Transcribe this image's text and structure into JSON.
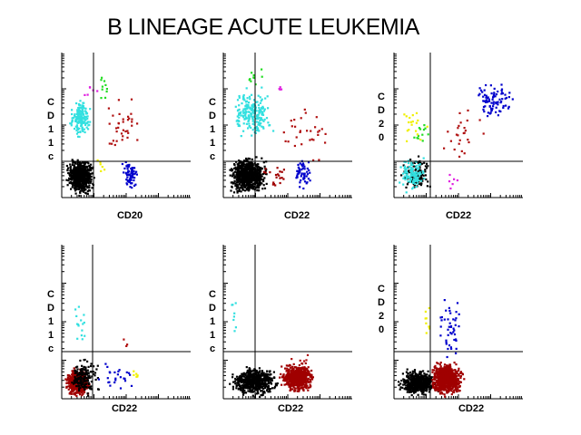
{
  "title": "B LINEAGE ACUTE LEUKEMIA",
  "colors": {
    "black": "#000000",
    "cyan": "#33e0e0",
    "blue": "#0000cc",
    "red": "#b01010",
    "darkred": "#a00000",
    "green": "#22dd22",
    "yellow": "#f0f000",
    "magenta": "#e020e0"
  },
  "chart_data": [
    {
      "type": "scatter",
      "panel": "top-left",
      "xlabel": "CD20",
      "ylabel": "CD11c",
      "populations": [
        {
          "color": "black",
          "x": [
            0,
            0.25
          ],
          "y": [
            0,
            0.28
          ],
          "count": 650
        },
        {
          "color": "cyan",
          "x": [
            0.03,
            0.22
          ],
          "y": [
            0.4,
            0.72
          ],
          "count": 160
        },
        {
          "color": "blue",
          "x": [
            0.45,
            0.6
          ],
          "y": [
            0.02,
            0.28
          ],
          "count": 70
        },
        {
          "color": "red",
          "x": [
            0.3,
            0.65
          ],
          "y": [
            0.25,
            0.75
          ],
          "count": 35
        },
        {
          "color": "green",
          "x": [
            0.25,
            0.4
          ],
          "y": [
            0.65,
            0.92
          ],
          "count": 10
        },
        {
          "color": "magenta",
          "x": [
            0.12,
            0.3
          ],
          "y": [
            0.65,
            0.9
          ],
          "count": 6
        },
        {
          "color": "yellow",
          "x": [
            0.22,
            0.35
          ],
          "y": [
            0.12,
            0.3
          ],
          "count": 6
        }
      ]
    },
    {
      "type": "scatter",
      "panel": "top-middle",
      "xlabel": "CD22",
      "ylabel": "CD11c",
      "populations": [
        {
          "color": "black",
          "x": [
            0,
            0.35
          ],
          "y": [
            0,
            0.3
          ],
          "count": 750
        },
        {
          "color": "cyan",
          "x": [
            0.02,
            0.4
          ],
          "y": [
            0.38,
            0.8
          ],
          "count": 200
        },
        {
          "color": "blue",
          "x": [
            0.52,
            0.7
          ],
          "y": [
            0.02,
            0.32
          ],
          "count": 55
        },
        {
          "color": "red",
          "x": [
            0.35,
            0.9
          ],
          "y": [
            0.2,
            0.72
          ],
          "count": 30
        },
        {
          "color": "darkred",
          "x": [
            0.25,
            0.55
          ],
          "y": [
            0.02,
            0.3
          ],
          "count": 20
        },
        {
          "color": "green",
          "x": [
            0.1,
            0.35
          ],
          "y": [
            0.7,
            0.95
          ],
          "count": 10
        },
        {
          "color": "magenta",
          "x": [
            0.35,
            0.5
          ],
          "y": [
            0.7,
            0.85
          ],
          "count": 4
        }
      ]
    },
    {
      "type": "scatter",
      "panel": "top-right",
      "xlabel": "CD22",
      "ylabel": "CD20",
      "populations": [
        {
          "color": "black",
          "x": [
            0.02,
            0.28
          ],
          "y": [
            0.02,
            0.3
          ],
          "count": 120
        },
        {
          "color": "cyan",
          "x": [
            0.0,
            0.25
          ],
          "y": [
            0.02,
            0.3
          ],
          "count": 110
        },
        {
          "color": "blue",
          "x": [
            0.6,
            0.95
          ],
          "y": [
            0.52,
            0.85
          ],
          "count": 85
        },
        {
          "color": "red",
          "x": [
            0.3,
            0.72
          ],
          "y": [
            0.1,
            0.7
          ],
          "count": 25
        },
        {
          "color": "green",
          "x": [
            0.12,
            0.3
          ],
          "y": [
            0.35,
            0.55
          ],
          "count": 12
        },
        {
          "color": "yellow",
          "x": [
            0.0,
            0.28
          ],
          "y": [
            0.3,
            0.7
          ],
          "count": 18
        },
        {
          "color": "magenta",
          "x": [
            0.4,
            0.5
          ],
          "y": [
            0.02,
            0.2
          ],
          "count": 6
        }
      ]
    },
    {
      "type": "scatter",
      "panel": "bottom-left",
      "xlabel": "CD22",
      "ylabel": "CD11c",
      "populations": [
        {
          "color": "darkred",
          "x": [
            0,
            0.22
          ],
          "y": [
            0,
            0.2
          ],
          "count": 700
        },
        {
          "color": "black",
          "x": [
            0,
            0.3
          ],
          "y": [
            0,
            0.28
          ],
          "count": 160
        },
        {
          "color": "cyan",
          "x": [
            0.05,
            0.2
          ],
          "y": [
            0.3,
            0.7
          ],
          "count": 15
        },
        {
          "color": "blue",
          "x": [
            0.25,
            0.6
          ],
          "y": [
            0.05,
            0.25
          ],
          "count": 25
        },
        {
          "color": "yellow",
          "x": [
            0.45,
            0.65
          ],
          "y": [
            0.1,
            0.2
          ],
          "count": 6
        },
        {
          "color": "red",
          "x": [
            0.35,
            0.55
          ],
          "y": [
            0.3,
            0.45
          ],
          "count": 3
        }
      ]
    },
    {
      "type": "scatter",
      "panel": "bottom-middle",
      "xlabel": "CD22",
      "ylabel": "CD11c",
      "populations": [
        {
          "color": "black",
          "x": [
            0,
            0.45
          ],
          "y": [
            0,
            0.22
          ],
          "count": 600
        },
        {
          "color": "darkred",
          "x": [
            0.42,
            0.72
          ],
          "y": [
            0.02,
            0.25
          ],
          "count": 650
        },
        {
          "color": "cyan",
          "x": [
            0.01,
            0.12
          ],
          "y": [
            0.3,
            0.75
          ],
          "count": 8
        },
        {
          "color": "red",
          "x": [
            0.5,
            0.7
          ],
          "y": [
            0.2,
            0.3
          ],
          "count": 5
        }
      ]
    },
    {
      "type": "scatter",
      "panel": "bottom-right",
      "xlabel": "CD22",
      "ylabel": "CD20",
      "populations": [
        {
          "color": "black",
          "x": [
            0,
            0.35
          ],
          "y": [
            0,
            0.2
          ],
          "count": 500
        },
        {
          "color": "darkred",
          "x": [
            0.25,
            0.55
          ],
          "y": [
            0.0,
            0.25
          ],
          "count": 750
        },
        {
          "color": "blue",
          "x": [
            0.3,
            0.55
          ],
          "y": [
            0.2,
            0.7
          ],
          "count": 45
        },
        {
          "color": "yellow",
          "x": [
            0.2,
            0.3
          ],
          "y": [
            0.3,
            0.7
          ],
          "count": 8
        }
      ]
    }
  ]
}
